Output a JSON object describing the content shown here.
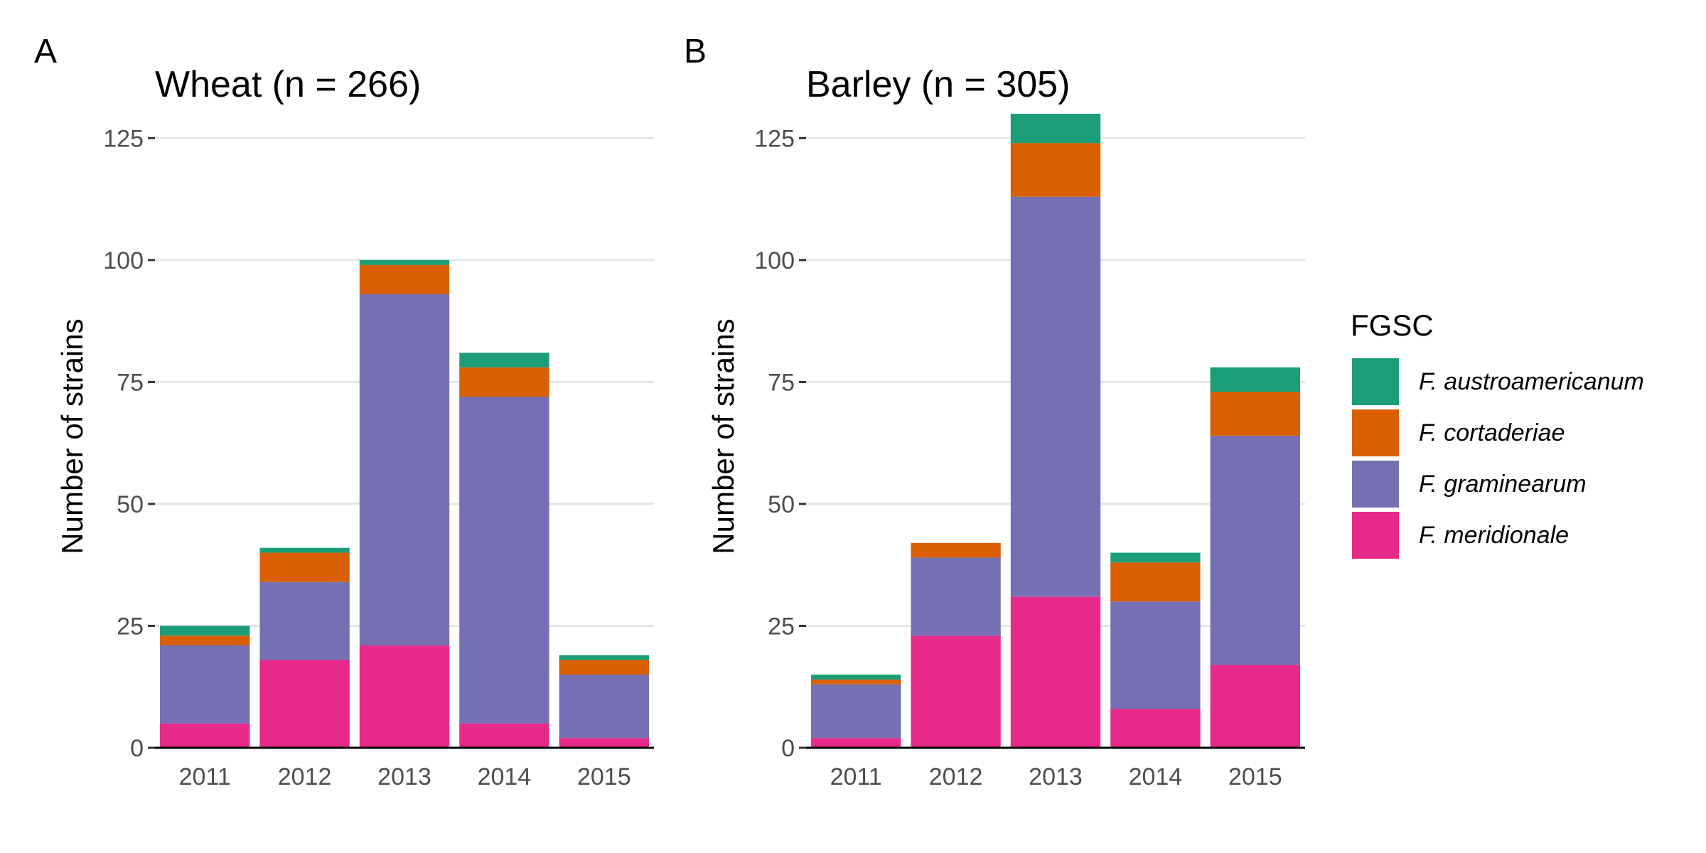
{
  "legend": {
    "title": "FGSC",
    "items": [
      {
        "label": "F. austroamericanum",
        "color": "#1b9e77"
      },
      {
        "label": "F. cortaderiae",
        "color": "#d95f02"
      },
      {
        "label": "F. graminearum",
        "color": "#7570b3"
      },
      {
        "label": "F. meridionale",
        "color": "#e7298a"
      }
    ]
  },
  "chart_data": [
    {
      "type": "bar",
      "stacked": true,
      "panel_label": "A",
      "title": "Wheat (n = 266)",
      "xlabel": "",
      "ylabel": "Number of strains",
      "ylim": [
        0,
        130
      ],
      "yticks": [
        0,
        25,
        50,
        75,
        100,
        125
      ],
      "grid": true,
      "categories": [
        "2011",
        "2012",
        "2013",
        "2014",
        "2015"
      ],
      "series": [
        {
          "name": "F. meridionale",
          "color": "#e7298a",
          "values": [
            5,
            18,
            21,
            5,
            2
          ]
        },
        {
          "name": "F. graminearum",
          "color": "#7570b3",
          "values": [
            16,
            16,
            72,
            67,
            13
          ]
        },
        {
          "name": "F. cortaderiae",
          "color": "#d95f02",
          "values": [
            2,
            6,
            6,
            6,
            3
          ]
        },
        {
          "name": "F. austroamericanum",
          "color": "#1b9e77",
          "values": [
            2,
            1,
            1,
            3,
            1
          ]
        }
      ]
    },
    {
      "type": "bar",
      "stacked": true,
      "panel_label": "B",
      "title": "Barley (n = 305)",
      "xlabel": "",
      "ylabel": "Number of strains",
      "ylim": [
        0,
        130
      ],
      "yticks": [
        0,
        25,
        50,
        75,
        100,
        125
      ],
      "grid": true,
      "categories": [
        "2011",
        "2012",
        "2013",
        "2014",
        "2015"
      ],
      "series": [
        {
          "name": "F. meridionale",
          "color": "#e7298a",
          "values": [
            2,
            23,
            31,
            8,
            17
          ]
        },
        {
          "name": "F. graminearum",
          "color": "#7570b3",
          "values": [
            11,
            16,
            82,
            22,
            47
          ]
        },
        {
          "name": "F. cortaderiae",
          "color": "#d95f02",
          "values": [
            1,
            3,
            11,
            8,
            9
          ]
        },
        {
          "name": "F. austroamericanum",
          "color": "#1b9e77",
          "values": [
            1,
            0,
            6,
            2,
            5
          ]
        }
      ]
    }
  ]
}
